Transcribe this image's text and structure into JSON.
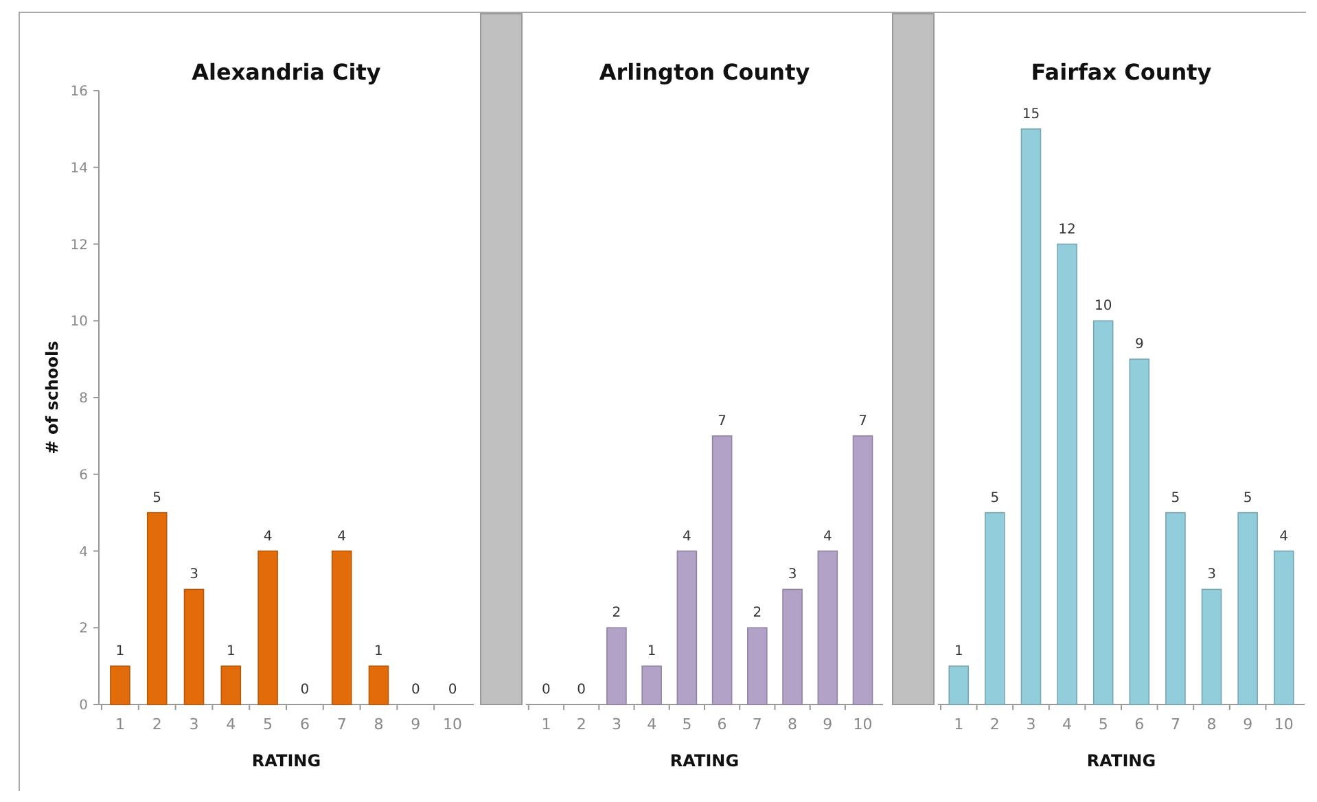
{
  "chart_data": [
    {
      "type": "bar",
      "title": "Alexandria City",
      "xlabel": "RATING",
      "ylabel": "# of schools",
      "categories": [
        "1",
        "2",
        "3",
        "4",
        "5",
        "6",
        "7",
        "8",
        "9",
        "10"
      ],
      "series": [
        {
          "color": "#e36c0a",
          "values": [
            1,
            5,
            3,
            1,
            4,
            0,
            4,
            1,
            0,
            0
          ]
        }
      ],
      "ylim": [
        0,
        16
      ],
      "yticks": [
        0,
        2,
        4,
        6,
        8,
        10,
        12,
        14,
        16
      ],
      "data_labels": true
    },
    {
      "type": "bar",
      "title": "Arlington County",
      "xlabel": "RATING",
      "categories": [
        "1",
        "2",
        "3",
        "4",
        "5",
        "6",
        "7",
        "8",
        "9",
        "10"
      ],
      "series": [
        {
          "color": "#b3a2c7",
          "values": [
            0,
            0,
            2,
            1,
            4,
            7,
            2,
            3,
            4,
            7
          ]
        }
      ],
      "ylim": [
        0,
        16
      ],
      "tick_labels": "x",
      "data_labels": true
    },
    {
      "type": "bar",
      "title": "Fairfax County",
      "xlabel": "RATING",
      "categories": [
        "1",
        "2",
        "3",
        "4",
        "5",
        "6",
        "7",
        "8",
        "9",
        "10"
      ],
      "series": [
        {
          "color": "#92cddc",
          "values": [
            1,
            5,
            15,
            12,
            10,
            9,
            5,
            3,
            5,
            4
          ]
        }
      ],
      "ylim": [
        0,
        16
      ],
      "tick_labels": "x",
      "data_labels": true
    }
  ]
}
